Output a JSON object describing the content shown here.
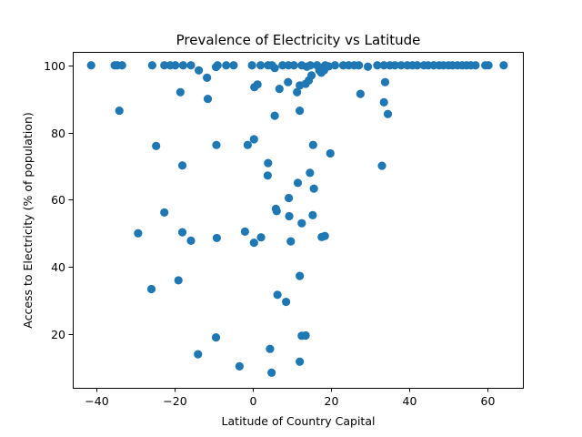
{
  "chart_data": {
    "type": "scatter",
    "title": "Prevalence of Electricity vs Latitude",
    "xlabel": "Latitude of Country Capital",
    "ylabel": "Access to Electricity (% of population)",
    "xlim": [
      -46,
      69
    ],
    "ylim": [
      4,
      104
    ],
    "xticks": [
      -40,
      -20,
      0,
      20,
      40,
      60
    ],
    "yticks": [
      20,
      40,
      60,
      80,
      100
    ],
    "xtick_labels": [
      "−40",
      "−20",
      "0",
      "20",
      "40",
      "60"
    ],
    "ytick_labels": [
      "20",
      "40",
      "60",
      "80",
      "100"
    ],
    "grid": false,
    "legend": "none",
    "marker_color": "#1f77b4",
    "points": [
      [
        -41.3,
        100
      ],
      [
        -35.3,
        100
      ],
      [
        -34.6,
        100
      ],
      [
        -33.4,
        100
      ],
      [
        -34.1,
        86.5
      ],
      [
        -25.7,
        100
      ],
      [
        -22.6,
        100
      ],
      [
        -21.1,
        100
      ],
      [
        -19.8,
        100
      ],
      [
        -17.8,
        100
      ],
      [
        -15.8,
        100
      ],
      [
        -13.8,
        98.5
      ],
      [
        -11.7,
        96.3
      ],
      [
        -9.4,
        99.5
      ],
      [
        -9.0,
        100
      ],
      [
        -6.8,
        100
      ],
      [
        -4.9,
        100
      ],
      [
        -0.2,
        100
      ],
      [
        2.0,
        100
      ],
      [
        3.9,
        100
      ],
      [
        4.9,
        100
      ],
      [
        5.6,
        99.2
      ],
      [
        7.6,
        100
      ],
      [
        9.1,
        100
      ],
      [
        10.5,
        100
      ],
      [
        12.5,
        100
      ],
      [
        13.8,
        99.6
      ],
      [
        14.7,
        100
      ],
      [
        16.4,
        100
      ],
      [
        17.4,
        99.3
      ],
      [
        18.5,
        100
      ],
      [
        19.4,
        99.7
      ],
      [
        21.0,
        100
      ],
      [
        23.1,
        100
      ],
      [
        24.5,
        100
      ],
      [
        25.9,
        100
      ],
      [
        27.1,
        100
      ],
      [
        29.4,
        99.6
      ],
      [
        31.8,
        100
      ],
      [
        33.5,
        100
      ],
      [
        35.0,
        100
      ],
      [
        36.3,
        100
      ],
      [
        37.9,
        100
      ],
      [
        39.5,
        100
      ],
      [
        40.8,
        100
      ],
      [
        42.0,
        100
      ],
      [
        43.7,
        100
      ],
      [
        44.8,
        100
      ],
      [
        46.2,
        100
      ],
      [
        47.6,
        100
      ],
      [
        48.7,
        100
      ],
      [
        50.0,
        100
      ],
      [
        51.0,
        100
      ],
      [
        52.3,
        100
      ],
      [
        53.5,
        100
      ],
      [
        54.6,
        100
      ],
      [
        55.7,
        100
      ],
      [
        56.9,
        100
      ],
      [
        59.4,
        100
      ],
      [
        60.2,
        100
      ],
      [
        64.1,
        100
      ],
      [
        -18.5,
        92.0
      ],
      [
        -11.5,
        90.0
      ],
      [
        0.4,
        93.5
      ],
      [
        1.2,
        94.3
      ],
      [
        6.8,
        93.0
      ],
      [
        9.0,
        95.0
      ],
      [
        11.3,
        92.0
      ],
      [
        12.0,
        94.0
      ],
      [
        13.5,
        94.5
      ],
      [
        14.3,
        95.5
      ],
      [
        15.0,
        97.0
      ],
      [
        17.0,
        98.5
      ],
      [
        17.5,
        97.8
      ],
      [
        18.2,
        98.5
      ],
      [
        27.5,
        91.5
      ],
      [
        33.8,
        95.0
      ],
      [
        33.5,
        89.0
      ],
      [
        34.5,
        85.5
      ],
      [
        5.6,
        85.0
      ],
      [
        12.0,
        86.5
      ],
      [
        -24.7,
        76.0
      ],
      [
        -9.3,
        76.3
      ],
      [
        -1.3,
        76.3
      ],
      [
        0.3,
        78.0
      ],
      [
        15.4,
        76.3
      ],
      [
        19.8,
        73.8
      ],
      [
        -18.0,
        70.2
      ],
      [
        3.9,
        70.9
      ],
      [
        33.0,
        70.1
      ],
      [
        3.8,
        67.2
      ],
      [
        14.6,
        68.0
      ],
      [
        11.5,
        65.0
      ],
      [
        15.6,
        63.3
      ],
      [
        9.2,
        60.5
      ],
      [
        5.9,
        57.3
      ],
      [
        6.1,
        56.6
      ],
      [
        9.3,
        55.1
      ],
      [
        15.3,
        55.4
      ],
      [
        -22.6,
        56.2
      ],
      [
        12.5,
        53.0
      ],
      [
        -29.3,
        50.0
      ],
      [
        -18.0,
        50.3
      ],
      [
        -2.0,
        50.5
      ],
      [
        2.1,
        48.8
      ],
      [
        -15.8,
        47.8
      ],
      [
        -9.2,
        48.6
      ],
      [
        0.3,
        47.2
      ],
      [
        9.7,
        47.6
      ],
      [
        17.6,
        48.9
      ],
      [
        18.4,
        49.2
      ],
      [
        12.0,
        37.3
      ],
      [
        -25.9,
        33.4
      ],
      [
        -19.0,
        36.0
      ],
      [
        6.3,
        31.7
      ],
      [
        8.5,
        29.6
      ],
      [
        -9.4,
        19.0
      ],
      [
        12.5,
        19.5
      ],
      [
        13.5,
        19.6
      ],
      [
        -14.0,
        14.0
      ],
      [
        4.4,
        15.6
      ],
      [
        -3.4,
        10.4
      ],
      [
        12.0,
        11.8
      ],
      [
        4.8,
        8.5
      ]
    ]
  }
}
